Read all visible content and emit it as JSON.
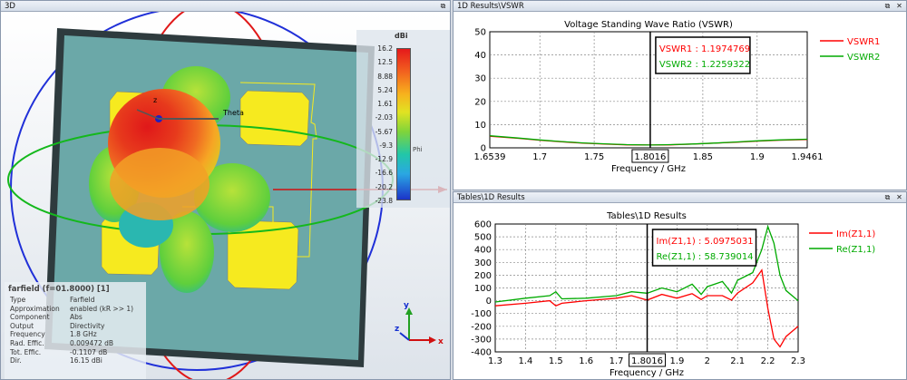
{
  "panel3d": {
    "title": "3D",
    "legend": {
      "unit": "dBi",
      "ticks": [
        "16.2",
        "12.5",
        "8.88",
        "5.24",
        "1.61",
        "-2.03",
        "-5.67",
        "-9.3",
        "-12.9",
        "-16.6",
        "-20.2",
        "-23.8"
      ],
      "phi_label": "Phi"
    },
    "axis_labels": {
      "z": "z",
      "theta": "Theta",
      "gizmo_y": "y",
      "gizmo_z": "z",
      "gizmo_x": "x"
    },
    "info": {
      "title": "farfield (f=01.8000) [1]",
      "rows": [
        {
          "k": "Type",
          "v": "Farfield"
        },
        {
          "k": "Approximation",
          "v": "enabled (kR >> 1)"
        },
        {
          "k": "Component",
          "v": "Abs"
        },
        {
          "k": "Output",
          "v": "Directivity"
        },
        {
          "k": "Frequency",
          "v": "1.8 GHz"
        },
        {
          "k": "Rad. Effic.",
          "v": "0.009472 dB"
        },
        {
          "k": "Tot. Effic.",
          "v": "-0.1107 dB"
        },
        {
          "k": "Dir.",
          "v": "16.15 dBi"
        }
      ]
    }
  },
  "panelVswr": {
    "title": "1D Results\\VSWR"
  },
  "panelZ": {
    "title": "Tables\\1D Results"
  },
  "window_buttons": {
    "restore": "⧉",
    "close": "✕"
  },
  "chart_data": [
    {
      "type": "line",
      "title": "Voltage Standing Wave Ratio (VSWR)",
      "xlabel": "Frequency / GHz",
      "ylabel": "",
      "xlim": [
        1.6539,
        1.9461
      ],
      "ylim": [
        0,
        50
      ],
      "xticks": [
        "1.6539",
        "1.7",
        "1.75",
        "1.8016",
        "1.85",
        "1.9",
        "1.9461"
      ],
      "xtick_values": [
        1.6539,
        1.7,
        1.75,
        1.8016,
        1.85,
        1.9,
        1.9461
      ],
      "yticks": [
        0,
        10,
        20,
        30,
        40,
        50
      ],
      "grid": true,
      "marker_x": 1.8016,
      "marker_label": "1.8016",
      "legend_position": "top-right",
      "series": [
        {
          "name": "VSWR1",
          "color": "#ff0000",
          "x": [
            1.6539,
            1.68,
            1.7,
            1.72,
            1.74,
            1.76,
            1.78,
            1.8016,
            1.82,
            1.84,
            1.86,
            1.88,
            1.9,
            1.92,
            1.9461
          ],
          "y": [
            5.0,
            4.1,
            3.3,
            2.6,
            2.0,
            1.6,
            1.3,
            1.2,
            1.3,
            1.6,
            2.0,
            2.4,
            2.9,
            3.3,
            3.6
          ]
        },
        {
          "name": "VSWR2",
          "color": "#00aa00",
          "x": [
            1.6539,
            1.68,
            1.7,
            1.72,
            1.74,
            1.76,
            1.78,
            1.8016,
            1.82,
            1.84,
            1.86,
            1.88,
            1.9,
            1.92,
            1.9461
          ],
          "y": [
            5.2,
            4.2,
            3.4,
            2.7,
            2.1,
            1.7,
            1.35,
            1.23,
            1.35,
            1.65,
            2.05,
            2.5,
            3.0,
            3.4,
            3.7
          ]
        }
      ],
      "readout": [
        "VSWR1 : 1.1974769",
        "VSWR2 : 1.2259322"
      ]
    },
    {
      "type": "line",
      "title": "Tables\\1D Results",
      "xlabel": "Frequency / GHz",
      "ylabel": "",
      "xlim": [
        1.3,
        2.3
      ],
      "ylim": [
        -400,
        600
      ],
      "xticks": [
        "1.3",
        "1.4",
        "1.5",
        "1.6",
        "1.7",
        "1.8016",
        "1.9",
        "2",
        "2.1",
        "2.2",
        "2.3"
      ],
      "xtick_values": [
        1.3,
        1.4,
        1.5,
        1.6,
        1.7,
        1.8016,
        1.9,
        2.0,
        2.1,
        2.2,
        2.3
      ],
      "yticks": [
        -400,
        -300,
        -200,
        -100,
        0,
        100,
        200,
        300,
        400,
        500,
        600
      ],
      "grid": true,
      "marker_x": 1.8016,
      "marker_label": "1.8016",
      "legend_position": "top-right",
      "series": [
        {
          "name": "Im(Z1,1)",
          "color": "#ff0000",
          "x": [
            1.3,
            1.4,
            1.48,
            1.5,
            1.52,
            1.6,
            1.7,
            1.75,
            1.8016,
            1.85,
            1.9,
            1.95,
            1.98,
            2.0,
            2.05,
            2.08,
            2.1,
            2.15,
            2.18,
            2.2,
            2.22,
            2.24,
            2.26,
            2.3
          ],
          "y": [
            -40,
            -20,
            0,
            -40,
            -20,
            0,
            20,
            40,
            5,
            50,
            20,
            55,
            10,
            40,
            40,
            5,
            60,
            140,
            240,
            -60,
            -300,
            -360,
            -280,
            -200
          ]
        },
        {
          "name": "Re(Z1,1)",
          "color": "#00aa00",
          "x": [
            1.3,
            1.4,
            1.48,
            1.5,
            1.52,
            1.6,
            1.7,
            1.75,
            1.8016,
            1.85,
            1.9,
            1.95,
            1.98,
            2.0,
            2.05,
            2.08,
            2.1,
            2.15,
            2.18,
            2.2,
            2.22,
            2.24,
            2.26,
            2.3
          ],
          "y": [
            -10,
            20,
            40,
            70,
            15,
            20,
            40,
            70,
            59,
            100,
            70,
            130,
            50,
            110,
            150,
            60,
            160,
            220,
            400,
            580,
            450,
            200,
            80,
            0
          ]
        }
      ],
      "readout": [
        "Im(Z1,1) : 5.0975031",
        "Re(Z1,1) : 58.739014"
      ]
    }
  ]
}
